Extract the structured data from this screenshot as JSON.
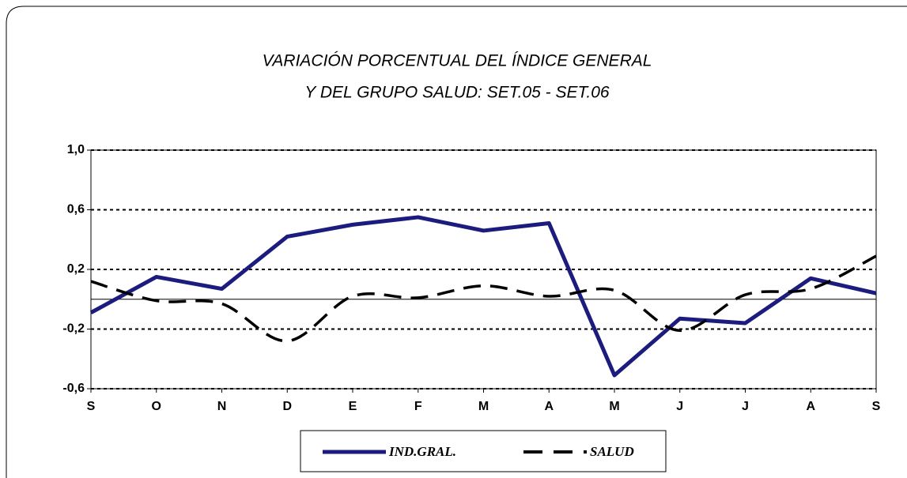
{
  "chart_data": {
    "type": "line",
    "title": "VARIACIÓN PORCENTUAL DEL ÍNDICE GENERAL",
    "subtitle": "Y DEL GRUPO SALUD:  SET.05 - SET.06",
    "categories": [
      "S",
      "O",
      "N",
      "D",
      "E",
      "F",
      "M",
      "A",
      "M",
      "J",
      "J",
      "A",
      "S"
    ],
    "series": [
      {
        "name": "IND.GRAL.",
        "color": "#1c1c7e",
        "style": "solid",
        "values": [
          -0.09,
          0.15,
          0.07,
          0.42,
          0.5,
          0.55,
          0.46,
          0.51,
          -0.51,
          -0.13,
          -0.16,
          0.14,
          0.04
        ]
      },
      {
        "name": "SALUD",
        "color": "#000000",
        "style": "dashed",
        "values": [
          0.12,
          -0.01,
          -0.03,
          -0.28,
          0.02,
          0.01,
          0.09,
          0.02,
          0.06,
          -0.21,
          0.03,
          0.07,
          0.29
        ]
      }
    ],
    "ylim": [
      -0.6,
      1.0
    ],
    "yticks": [
      {
        "value": -0.6,
        "label": "-0,6"
      },
      {
        "value": -0.2,
        "label": "-0,2"
      },
      {
        "value": 0.2,
        "label": "0,2"
      },
      {
        "value": 0.6,
        "label": "0,6"
      },
      {
        "value": 1.0,
        "label": "1,0"
      }
    ],
    "grid": true,
    "legend": "bottom"
  }
}
